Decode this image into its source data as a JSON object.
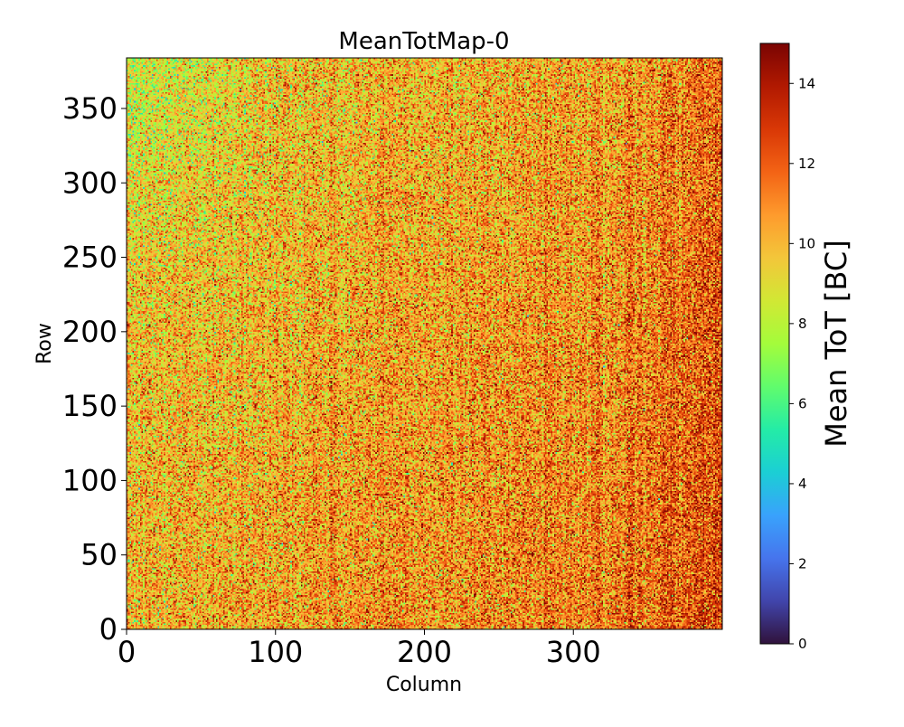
{
  "chart_data": {
    "type": "heatmap",
    "title": "MeanTotMap-0",
    "xlabel": "Column",
    "ylabel": "Row",
    "xlim": [
      0,
      400
    ],
    "ylim": [
      0,
      384
    ],
    "x_ticks": [
      {
        "value": 0,
        "label": "0"
      },
      {
        "value": 100,
        "label": "100"
      },
      {
        "value": 200,
        "label": "200"
      },
      {
        "value": 300,
        "label": "300"
      }
    ],
    "y_ticks": [
      {
        "value": 0,
        "label": "0"
      },
      {
        "value": 50,
        "label": "50"
      },
      {
        "value": 100,
        "label": "100"
      },
      {
        "value": 150,
        "label": "150"
      },
      {
        "value": 200,
        "label": "200"
      },
      {
        "value": 250,
        "label": "250"
      },
      {
        "value": 300,
        "label": "300"
      },
      {
        "value": 350,
        "label": "350"
      }
    ],
    "grid": false,
    "colormap": "turbo",
    "colorbar": {
      "label": "Mean ToT [BC]",
      "range": [
        0,
        15
      ],
      "ticks": [
        {
          "value": 0,
          "label": "0"
        },
        {
          "value": 2,
          "label": "2"
        },
        {
          "value": 4,
          "label": "4"
        },
        {
          "value": 6,
          "label": "6"
        },
        {
          "value": 8,
          "label": "8"
        },
        {
          "value": 10,
          "label": "10"
        },
        {
          "value": 12,
          "label": "12"
        },
        {
          "value": 14,
          "label": "14"
        }
      ]
    },
    "value_distribution": {
      "typical_mean": 10.5,
      "typical_spread": 1.8,
      "low_value_region": "top-left (low columns, high rows) around 7-8",
      "high_value_region": "right side (columns 330-400) around 12-14"
    }
  }
}
